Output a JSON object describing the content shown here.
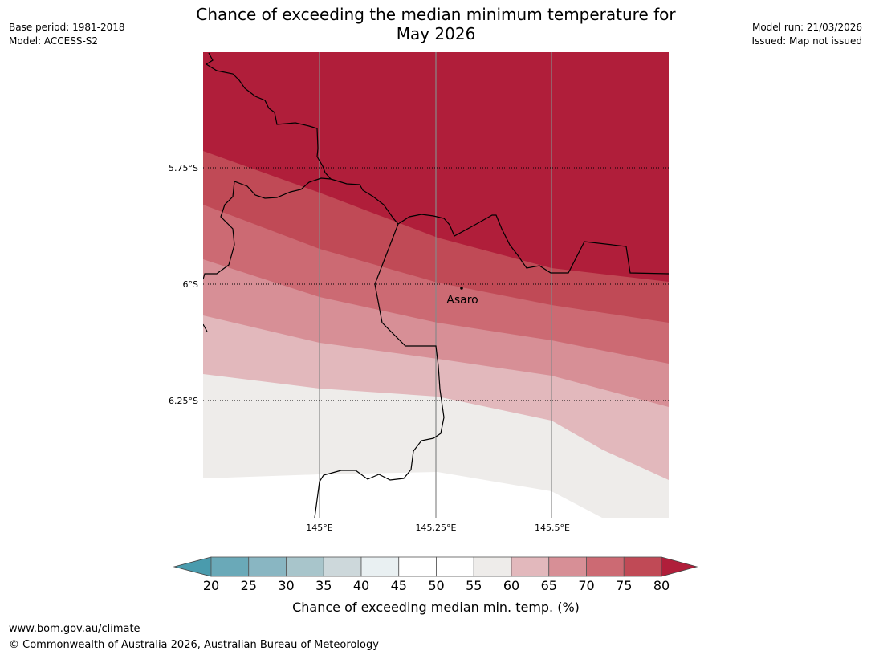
{
  "header": {
    "title_line1": "Chance of exceeding the median minimum temperature for",
    "title_line2": "May 2026",
    "base_period": "Base period: 1981-2018",
    "model": "Model: ACCESS-S2",
    "model_run": "Model run: 21/03/2026",
    "issued": "Issued: Map not issued"
  },
  "map": {
    "lat_labels": [
      "5.75°S",
      "6°S",
      "6.25°S"
    ],
    "lon_labels": [
      "145°E",
      "145.25°E",
      "145.5°E"
    ],
    "place_label": "Asaro",
    "colors": {
      "band_80": "#b01e3a",
      "band_75": "#c04a56",
      "band_70": "#cc6a73",
      "band_65": "#d78f96",
      "band_60": "#e2b8bc",
      "band_55": "#eeecea"
    }
  },
  "colorbar": {
    "ticks": [
      "20",
      "25",
      "30",
      "35",
      "40",
      "45",
      "50",
      "55",
      "60",
      "65",
      "70",
      "75",
      "80"
    ],
    "label": "Chance of exceeding median min. temp. (%)",
    "colors": [
      "#6aa9b8",
      "#89b6c2",
      "#a8c5cb",
      "#cdd8db",
      "#e9f0f2",
      "#ffffff",
      "#ffffff",
      "#eeecea",
      "#e2b8bc",
      "#d78f96",
      "#cc6a73",
      "#c04a56"
    ],
    "low_extend_color": "#4a9bad",
    "high_extend_color": "#b01e3a"
  },
  "footer": {
    "url": "www.bom.gov.au/climate",
    "copyright": "© Commonwealth of Australia 2026, Australian Bureau of Meteorology"
  }
}
